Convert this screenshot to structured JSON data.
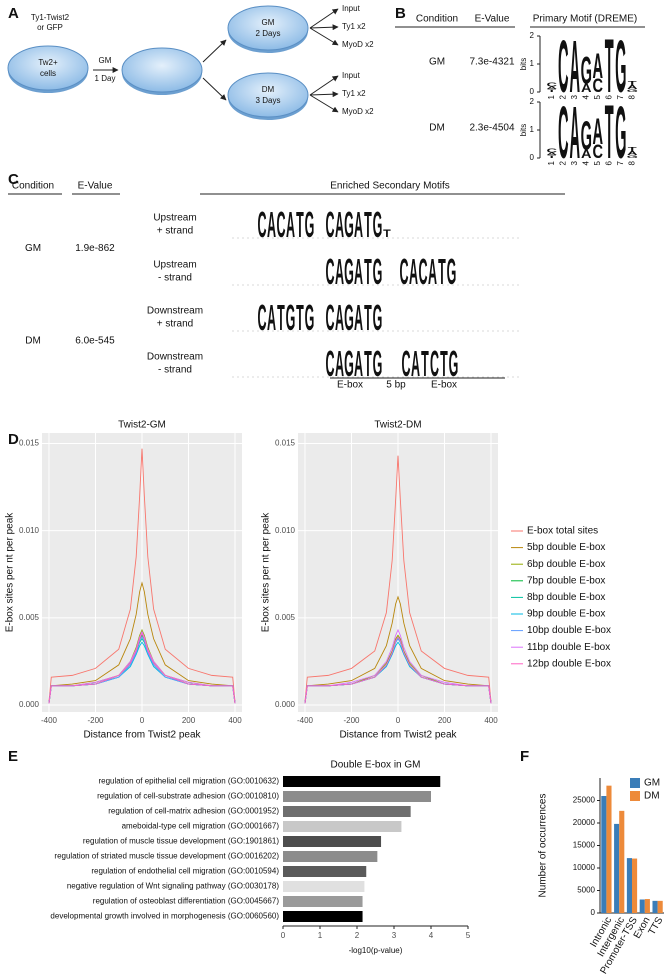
{
  "panel_labels": [
    "A",
    "B",
    "C",
    "D",
    "E",
    "F"
  ],
  "diagram": {
    "source": [
      "Ty1-Twist2",
      "or GFP"
    ],
    "cells": [
      "Tw2+",
      "cells"
    ],
    "step": [
      "GM",
      "1 Day"
    ],
    "branches": [
      {
        "condition": [
          "GM",
          "2 Days"
        ],
        "samples": [
          "Input",
          "Ty1 x2",
          "MyoD x2"
        ]
      },
      {
        "condition": [
          "DM",
          "3 Days"
        ],
        "samples": [
          "Input",
          "Ty1 x2",
          "MyoD x2"
        ]
      }
    ]
  },
  "table_b": {
    "headers": [
      "Condition",
      "E-Value",
      "Primary Motif (DREME)"
    ],
    "logo_axis_label": "bits",
    "logo_ylim": [
      0,
      2
    ],
    "logo_yticks": [
      0,
      1,
      2
    ],
    "logo_positions": [
      1,
      2,
      3,
      4,
      5,
      6,
      7,
      8
    ],
    "rows": [
      {
        "condition": "GM",
        "e_value": "7.3e-4321",
        "logo": [
          [
            {
              "letter": "T",
              "bits": 0.1
            },
            {
              "letter": "A",
              "bits": 0.1
            },
            {
              "letter": "C",
              "bits": 0.15
            }
          ],
          [
            {
              "letter": "C",
              "bits": 1.9
            }
          ],
          [
            {
              "letter": "A",
              "bits": 1.9
            }
          ],
          [
            {
              "letter": "A",
              "bits": 0.3
            },
            {
              "letter": "G",
              "bits": 1.0
            }
          ],
          [
            {
              "letter": "C",
              "bits": 0.5
            },
            {
              "letter": "A",
              "bits": 0.9
            }
          ],
          [
            {
              "letter": "T",
              "bits": 1.95
            }
          ],
          [
            {
              "letter": "G",
              "bits": 1.9
            }
          ],
          [
            {
              "letter": "G",
              "bits": 0.1
            },
            {
              "letter": "A",
              "bits": 0.15
            },
            {
              "letter": "T",
              "bits": 0.15
            }
          ]
        ]
      },
      {
        "condition": "DM",
        "e_value": "2.3e-4504",
        "logo": [
          [
            {
              "letter": "T",
              "bits": 0.1
            },
            {
              "letter": "A",
              "bits": 0.1
            },
            {
              "letter": "C",
              "bits": 0.15
            }
          ],
          [
            {
              "letter": "C",
              "bits": 1.9
            }
          ],
          [
            {
              "letter": "A",
              "bits": 1.9
            }
          ],
          [
            {
              "letter": "A",
              "bits": 0.3
            },
            {
              "letter": "G",
              "bits": 1.05
            }
          ],
          [
            {
              "letter": "C",
              "bits": 0.5
            },
            {
              "letter": "A",
              "bits": 0.95
            }
          ],
          [
            {
              "letter": "T",
              "bits": 1.95
            }
          ],
          [
            {
              "letter": "G",
              "bits": 1.9
            }
          ],
          [
            {
              "letter": "G",
              "bits": 0.1
            },
            {
              "letter": "A",
              "bits": 0.15
            },
            {
              "letter": "T",
              "bits": 0.15
            }
          ]
        ]
      }
    ]
  },
  "table_c": {
    "headers": [
      "Condition",
      "E-Value",
      "Enriched Secondary Motifs"
    ],
    "groups": [
      {
        "condition": "GM",
        "e_value": "1.9e-862",
        "motifs": [
          {
            "label": [
              "Upstream",
              "+ strand"
            ],
            "logo": [
              [
                "C",
                "A",
                "C",
                "A",
                "T",
                "G"
              ],
              [
                "C",
                "A",
                "G",
                "A",
                "T",
                "G",
                "T"
              ]
            ]
          },
          {
            "label": [
              "Upstream",
              "- strand"
            ],
            "logo": [
              [
                "C",
                "A",
                "G",
                "A",
                "T",
                "G"
              ],
              [
                "C",
                "A",
                "C",
                "A",
                "T",
                "G"
              ]
            ]
          }
        ]
      },
      {
        "condition": "DM",
        "e_value": "6.0e-545",
        "motifs": [
          {
            "label": [
              "Downstream",
              "+ strand"
            ],
            "logo": [
              [
                "C",
                "A",
                "T",
                "G",
                "T",
                "G"
              ],
              [
                "C",
                "A",
                "G",
                "A",
                "T",
                "G"
              ]
            ]
          },
          {
            "label": [
              "Downstream",
              "- strand"
            ],
            "logo": [
              [
                "C",
                "A",
                "G",
                "A",
                "T",
                "G"
              ],
              [
                "C",
                "A",
                "T",
                "C",
                "T",
                "G"
              ]
            ]
          }
        ]
      }
    ],
    "annotation": [
      "E-box",
      "5 bp",
      "E-box"
    ]
  },
  "chart_data": [
    {
      "type": "line",
      "facets": [
        "Twist2-GM",
        "Twist2-DM"
      ],
      "xlabel": "Distance from Twist2 peak",
      "ylabel": "E-box sites per nt per peak",
      "x": [
        -400,
        -390,
        -300,
        -200,
        -100,
        -50,
        -25,
        -10,
        0,
        10,
        25,
        50,
        100,
        200,
        300,
        390,
        400
      ],
      "xlim": [
        -430,
        430
      ],
      "xticks": [
        -400,
        -200,
        0,
        200,
        400
      ],
      "ylim": [
        -0.0004,
        0.0156
      ],
      "yticks": [
        {
          "value": 0,
          "label": "0.000"
        },
        {
          "value": 0.005,
          "label": "0.005"
        },
        {
          "value": 0.01,
          "label": "0.010"
        },
        {
          "value": 0.015,
          "label": "0.015"
        }
      ],
      "grid": true,
      "legend": "right",
      "series": [
        {
          "name": "E-box total sites",
          "color": "#F8766D",
          "values": [
            [
              0.0002,
              0.0016,
              0.0017,
              0.0021,
              0.0032,
              0.0055,
              0.0085,
              0.012,
              0.0147,
              0.012,
              0.0085,
              0.0055,
              0.0032,
              0.0021,
              0.0017,
              0.0016,
              0.0002
            ],
            [
              0.0002,
              0.0016,
              0.0017,
              0.0021,
              0.0031,
              0.0053,
              0.0083,
              0.0118,
              0.0143,
              0.0118,
              0.0083,
              0.0053,
              0.0031,
              0.0021,
              0.0017,
              0.0016,
              0.0002
            ]
          ]
        },
        {
          "name": "5bp double E-box",
          "color": "#B8860B",
          "values": [
            [
              0.0001,
              0.0011,
              0.0012,
              0.0014,
              0.0023,
              0.0038,
              0.0052,
              0.0065,
              0.007,
              0.0065,
              0.0052,
              0.0038,
              0.0023,
              0.0014,
              0.0012,
              0.0011,
              0.0001
            ],
            [
              0.0001,
              0.0011,
              0.0012,
              0.0014,
              0.0021,
              0.0034,
              0.0047,
              0.0058,
              0.0062,
              0.0058,
              0.0047,
              0.0034,
              0.0021,
              0.0014,
              0.0012,
              0.0011,
              0.0001
            ]
          ]
        },
        {
          "name": "6bp double E-box",
          "color": "#93AA00",
          "values": [
            [
              0.0001,
              0.0011,
              0.0011,
              0.0013,
              0.0017,
              0.0025,
              0.0033,
              0.004,
              0.0043,
              0.004,
              0.0033,
              0.0025,
              0.0017,
              0.0013,
              0.0011,
              0.0011,
              0.0001
            ],
            [
              0.0001,
              0.0011,
              0.0011,
              0.0012,
              0.0017,
              0.0024,
              0.0031,
              0.0038,
              0.004,
              0.0038,
              0.0031,
              0.0024,
              0.0017,
              0.0012,
              0.0011,
              0.0011,
              0.0001
            ]
          ]
        },
        {
          "name": "7bp double E-box",
          "color": "#00BA38",
          "values": [
            [
              0.0001,
              0.0011,
              0.0011,
              0.0012,
              0.0017,
              0.0024,
              0.0031,
              0.0038,
              0.004,
              0.0038,
              0.0031,
              0.0024,
              0.0017,
              0.0012,
              0.0011,
              0.0011,
              0.0001
            ],
            [
              0.0001,
              0.0011,
              0.0011,
              0.0012,
              0.0016,
              0.0023,
              0.003,
              0.0037,
              0.0039,
              0.0037,
              0.003,
              0.0023,
              0.0016,
              0.0012,
              0.0011,
              0.0011,
              0.0001
            ]
          ]
        },
        {
          "name": "8bp double E-box",
          "color": "#00C19F",
          "values": [
            [
              0.0001,
              0.0011,
              0.0011,
              0.0012,
              0.0016,
              0.0023,
              0.003,
              0.0036,
              0.0038,
              0.0036,
              0.003,
              0.0023,
              0.0016,
              0.0012,
              0.0011,
              0.0011,
              0.0001
            ],
            [
              0.0001,
              0.0011,
              0.0011,
              0.0012,
              0.0016,
              0.0023,
              0.003,
              0.0036,
              0.0038,
              0.0036,
              0.003,
              0.0023,
              0.0016,
              0.0012,
              0.0011,
              0.0011,
              0.0001
            ]
          ]
        },
        {
          "name": "9bp double E-box",
          "color": "#00B9E3",
          "values": [
            [
              0.0001,
              0.0011,
              0.0011,
              0.0012,
              0.0016,
              0.0022,
              0.0029,
              0.0034,
              0.0036,
              0.0034,
              0.0029,
              0.0022,
              0.0016,
              0.0012,
              0.0011,
              0.0011,
              0.0001
            ],
            [
              0.0001,
              0.0011,
              0.0011,
              0.0012,
              0.0016,
              0.0022,
              0.0029,
              0.0034,
              0.0036,
              0.0034,
              0.0029,
              0.0022,
              0.0016,
              0.0012,
              0.0011,
              0.0011,
              0.0001
            ]
          ]
        },
        {
          "name": "10bp double E-box",
          "color": "#619CFF",
          "values": [
            [
              0.0001,
              0.0011,
              0.0011,
              0.0012,
              0.0016,
              0.0023,
              0.003,
              0.0037,
              0.0039,
              0.0037,
              0.003,
              0.0023,
              0.0016,
              0.0012,
              0.0011,
              0.0011,
              0.0001
            ],
            [
              0.0001,
              0.0011,
              0.0011,
              0.0012,
              0.0016,
              0.0023,
              0.003,
              0.0036,
              0.0038,
              0.0036,
              0.003,
              0.0023,
              0.0016,
              0.0012,
              0.0011,
              0.0011,
              0.0001
            ]
          ]
        },
        {
          "name": "11bp double E-box",
          "color": "#DB72FB",
          "values": [
            [
              0.0001,
              0.0011,
              0.0011,
              0.0013,
              0.0017,
              0.0025,
              0.0032,
              0.0039,
              0.0042,
              0.0039,
              0.0032,
              0.0025,
              0.0017,
              0.0013,
              0.0011,
              0.0011,
              0.0001
            ],
            [
              0.0001,
              0.0011,
              0.0011,
              0.0013,
              0.0017,
              0.0025,
              0.0033,
              0.004,
              0.0043,
              0.004,
              0.0033,
              0.0025,
              0.0017,
              0.0013,
              0.0011,
              0.0011,
              0.0001
            ]
          ]
        },
        {
          "name": "12bp double E-box",
          "color": "#FF61C3",
          "values": [
            [
              0.0001,
              0.0011,
              0.0011,
              0.0012,
              0.0017,
              0.0024,
              0.0031,
              0.0038,
              0.0041,
              0.0038,
              0.0031,
              0.0024,
              0.0017,
              0.0012,
              0.0011,
              0.0011,
              0.0001
            ],
            [
              0.0001,
              0.0011,
              0.0011,
              0.0012,
              0.0016,
              0.0023,
              0.003,
              0.0037,
              0.0039,
              0.0037,
              0.003,
              0.0023,
              0.0016,
              0.0012,
              0.0011,
              0.0011,
              0.0001
            ]
          ]
        }
      ]
    },
    {
      "type": "barh",
      "title": "Double E-box in GM",
      "xlabel": "-log10(p-value)",
      "categories": [
        "regulation of epithelial cell migration (GO:0010632)",
        "regulation of cell-substrate adhesion (GO:0010810)",
        "regulation of cell-matrix adhesion (GO:0001952)",
        "ameboidal-type cell migration (GO:0001667)",
        "regulation of muscle tissue development (GO:1901861)",
        "regulation of striated muscle tissue development (GO:0016202)",
        "regulation of endothelial cell migration (GO:0010594)",
        "negative regulation of Wnt signaling pathway (GO:0030178)",
        "regulation of osteoblast differentiation (GO:0045667)",
        "developmental growth involved in morphogenesis (GO:0060560)"
      ],
      "values": [
        4.25,
        4.0,
        3.45,
        3.2,
        2.65,
        2.55,
        2.25,
        2.2,
        2.15,
        2.15
      ],
      "colors": [
        "#000000",
        "#8c8c8c",
        "#6e6e6e",
        "#c8c8c8",
        "#4d4d4d",
        "#8c8c8c",
        "#5a5a5a",
        "#e0e0e0",
        "#9a9a9a",
        "#000000"
      ],
      "xlim": [
        0,
        5
      ],
      "xticks": [
        0,
        1,
        2,
        3,
        4,
        5
      ]
    },
    {
      "type": "bar",
      "ylabel": "Number of occurrences",
      "categories": [
        "Intronic",
        "Intergenic",
        "Promoter-TSS",
        "Exon",
        "TTS"
      ],
      "series": [
        {
          "name": "GM",
          "color": "#3a7db8",
          "values": [
            26000,
            19800,
            12200,
            3000,
            2700
          ]
        },
        {
          "name": "DM",
          "color": "#ed8a3a",
          "values": [
            28300,
            22700,
            12100,
            3100,
            2700
          ]
        }
      ],
      "ylim": [
        0,
        30000
      ],
      "yticks": [
        0,
        5000,
        10000,
        15000,
        20000,
        25000
      ],
      "legend": "top-right"
    }
  ]
}
